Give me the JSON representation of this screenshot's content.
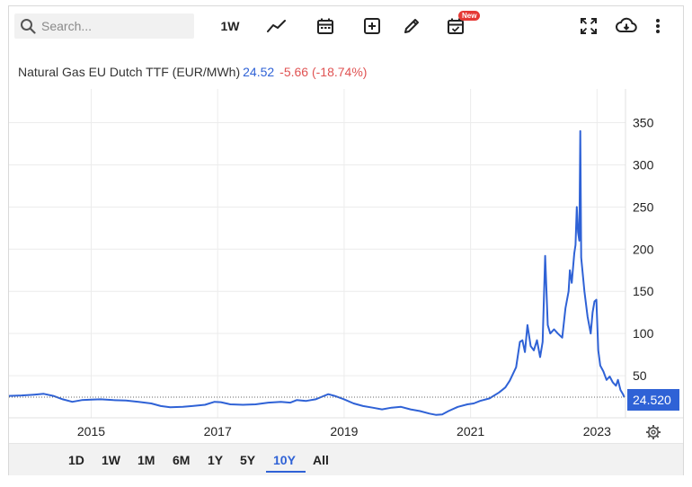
{
  "toolbar": {
    "search_placeholder": "Search...",
    "interval_label": "1W",
    "new_badge": "New",
    "icons": [
      "search-icon",
      "line-chart-icon",
      "calendar-icon",
      "add-indicator-icon",
      "pencil-icon",
      "calendar-check-icon",
      "fullscreen-icon",
      "cloud-download-icon",
      "more-vertical-icon"
    ]
  },
  "legend": {
    "title": "Natural Gas EU Dutch TTF (EUR/MWh)",
    "price": "24.52",
    "change": "-5.66 (-18.74%)",
    "price_color": "#2f62d6",
    "change_color": "#e05353"
  },
  "last_price_label": "24.520",
  "range_buttons": [
    "1D",
    "1W",
    "1M",
    "6M",
    "1Y",
    "5Y",
    "10Y",
    "All"
  ],
  "active_range": "10Y",
  "colors": {
    "line": "#2f62d6",
    "accent": "#2f62d6"
  },
  "chart_data": {
    "type": "line",
    "title": "Natural Gas EU Dutch TTF (EUR/MWh)",
    "xlabel": "",
    "ylabel": "",
    "x_tick_labels": [
      "2015",
      "2017",
      "2019",
      "2021",
      "2023"
    ],
    "y_tick_labels": [
      "50",
      "100",
      "150",
      "200",
      "250",
      "300",
      "350"
    ],
    "xlim": [
      2013.7,
      2023.45
    ],
    "ylim": [
      0,
      390
    ],
    "grid": true,
    "last_value": 24.52,
    "series": [
      {
        "points": [
          [
            2013.7,
            26
          ],
          [
            2013.9,
            26.5
          ],
          [
            2014.1,
            27.5
          ],
          [
            2014.25,
            28.5
          ],
          [
            2014.4,
            26
          ],
          [
            2014.55,
            22
          ],
          [
            2014.7,
            19
          ],
          [
            2014.85,
            21
          ],
          [
            2015.0,
            21.5
          ],
          [
            2015.15,
            22
          ],
          [
            2015.35,
            21
          ],
          [
            2015.55,
            20.5
          ],
          [
            2015.75,
            19
          ],
          [
            2015.95,
            17
          ],
          [
            2016.1,
            14
          ],
          [
            2016.25,
            12.5
          ],
          [
            2016.45,
            13
          ],
          [
            2016.6,
            14
          ],
          [
            2016.8,
            15.5
          ],
          [
            2016.95,
            19
          ],
          [
            2017.05,
            18.5
          ],
          [
            2017.2,
            16
          ],
          [
            2017.4,
            15.5
          ],
          [
            2017.6,
            16
          ],
          [
            2017.8,
            18
          ],
          [
            2018.0,
            19
          ],
          [
            2018.15,
            18
          ],
          [
            2018.25,
            21
          ],
          [
            2018.4,
            20
          ],
          [
            2018.55,
            22
          ],
          [
            2018.65,
            25
          ],
          [
            2018.75,
            28
          ],
          [
            2018.85,
            26
          ],
          [
            2019.0,
            22
          ],
          [
            2019.15,
            17
          ],
          [
            2019.3,
            14
          ],
          [
            2019.45,
            12
          ],
          [
            2019.6,
            10
          ],
          [
            2019.75,
            12
          ],
          [
            2019.9,
            13
          ],
          [
            2020.05,
            10
          ],
          [
            2020.2,
            8
          ],
          [
            2020.35,
            5
          ],
          [
            2020.45,
            3.5
          ],
          [
            2020.55,
            4
          ],
          [
            2020.65,
            8
          ],
          [
            2020.8,
            13
          ],
          [
            2020.95,
            16
          ],
          [
            2021.05,
            17
          ],
          [
            2021.15,
            20
          ],
          [
            2021.3,
            23
          ],
          [
            2021.45,
            30
          ],
          [
            2021.55,
            36
          ],
          [
            2021.62,
            44
          ],
          [
            2021.72,
            60
          ],
          [
            2021.78,
            90
          ],
          [
            2021.82,
            92
          ],
          [
            2021.86,
            78
          ],
          [
            2021.9,
            110
          ],
          [
            2021.95,
            85
          ],
          [
            2022.0,
            80
          ],
          [
            2022.05,
            92
          ],
          [
            2022.1,
            72
          ],
          [
            2022.14,
            90
          ],
          [
            2022.18,
            192
          ],
          [
            2022.22,
            110
          ],
          [
            2022.26,
            100
          ],
          [
            2022.32,
            105
          ],
          [
            2022.38,
            100
          ],
          [
            2022.45,
            95
          ],
          [
            2022.5,
            130
          ],
          [
            2022.55,
            150
          ],
          [
            2022.57,
            175
          ],
          [
            2022.6,
            160
          ],
          [
            2022.64,
            195
          ],
          [
            2022.66,
            205
          ],
          [
            2022.68,
            250
          ],
          [
            2022.7,
            220
          ],
          [
            2022.72,
            210
          ],
          [
            2022.735,
            340
          ],
          [
            2022.75,
            190
          ],
          [
            2022.8,
            150
          ],
          [
            2022.85,
            120
          ],
          [
            2022.9,
            100
          ],
          [
            2022.93,
            125
          ],
          [
            2022.96,
            138
          ],
          [
            2022.99,
            140
          ],
          [
            2023.02,
            80
          ],
          [
            2023.05,
            62
          ],
          [
            2023.1,
            55
          ],
          [
            2023.15,
            45
          ],
          [
            2023.2,
            49
          ],
          [
            2023.25,
            42
          ],
          [
            2023.3,
            38
          ],
          [
            2023.33,
            45
          ],
          [
            2023.37,
            33
          ],
          [
            2023.41,
            28
          ],
          [
            2023.43,
            24.5
          ]
        ]
      }
    ]
  }
}
